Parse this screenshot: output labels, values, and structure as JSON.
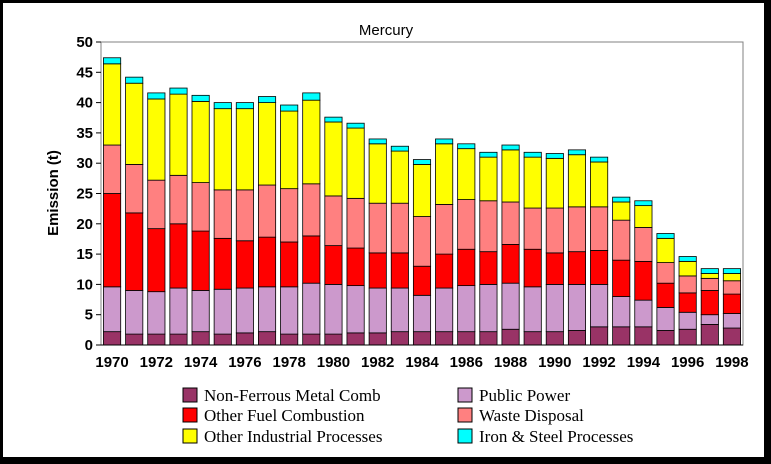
{
  "chart_data": {
    "type": "bar",
    "stacked": true,
    "title": "Mercury",
    "xlabel": "",
    "ylabel": "Emission (t)",
    "ylim": [
      0,
      50
    ],
    "yticks": [
      0,
      5,
      10,
      15,
      20,
      25,
      30,
      35,
      40,
      45,
      50
    ],
    "categories": [
      "1970",
      "1971",
      "1972",
      "1973",
      "1974",
      "1975",
      "1976",
      "1977",
      "1978",
      "1979",
      "1980",
      "1981",
      "1982",
      "1983",
      "1984",
      "1985",
      "1986",
      "1987",
      "1988",
      "1989",
      "1990",
      "1991",
      "1992",
      "1993",
      "1994",
      "1995",
      "1996",
      "1997",
      "1998"
    ],
    "xtick_labels": [
      "1970",
      "",
      "1972",
      "",
      "1974",
      "",
      "1976",
      "",
      "1978",
      "",
      "1980",
      "",
      "1982",
      "",
      "1984",
      "",
      "1986",
      "",
      "1988",
      "",
      "1990",
      "",
      "1992",
      "",
      "1994",
      "",
      "1996",
      "",
      "1998"
    ],
    "grid": false,
    "legend_position": "bottom",
    "colors": {
      "plot_border": "#808080",
      "bar_edge": "#000000"
    },
    "series": [
      {
        "name": "Non-Ferrous Metal Comb",
        "color": "#993366",
        "values": [
          2.2,
          1.8,
          1.8,
          1.8,
          2.2,
          1.8,
          2.0,
          2.2,
          1.8,
          1.8,
          1.8,
          2.0,
          2.0,
          2.2,
          2.2,
          2.2,
          2.2,
          2.2,
          2.6,
          2.2,
          2.2,
          2.4,
          3.0,
          3.0,
          3.0,
          2.4,
          2.6,
          3.4,
          2.8
        ]
      },
      {
        "name": "Public Power",
        "color": "#cc99cc",
        "values": [
          7.4,
          7.2,
          7.0,
          7.6,
          6.8,
          7.4,
          7.4,
          7.4,
          7.8,
          8.4,
          8.2,
          7.8,
          7.4,
          7.2,
          6.0,
          7.2,
          7.6,
          7.8,
          7.6,
          7.4,
          7.8,
          7.6,
          7.0,
          5.0,
          4.4,
          3.8,
          2.8,
          1.6,
          2.4
        ]
      },
      {
        "name": "Other Fuel Combustion",
        "color": "#ff0000",
        "values": [
          15.4,
          12.8,
          10.4,
          10.6,
          9.8,
          8.4,
          7.8,
          8.2,
          7.4,
          7.8,
          6.4,
          6.2,
          5.8,
          5.8,
          4.8,
          5.6,
          6.0,
          5.4,
          6.4,
          6.2,
          5.2,
          5.4,
          5.6,
          6.0,
          6.4,
          4.0,
          3.2,
          4.0,
          3.2
        ]
      },
      {
        "name": "Waste Disposal",
        "color": "#ff8080",
        "values": [
          8.0,
          8.0,
          8.0,
          8.0,
          8.0,
          8.0,
          8.4,
          8.6,
          8.8,
          8.6,
          8.2,
          8.2,
          8.2,
          8.2,
          8.2,
          8.2,
          8.2,
          8.4,
          7.0,
          6.8,
          7.4,
          7.4,
          7.2,
          6.6,
          5.6,
          3.4,
          2.8,
          2.0,
          2.2
        ]
      },
      {
        "name": "Other Industrial Processes",
        "color": "#ffff00",
        "values": [
          13.4,
          13.4,
          13.4,
          13.4,
          13.4,
          13.4,
          13.4,
          13.6,
          12.8,
          13.8,
          12.2,
          11.6,
          9.8,
          8.6,
          8.6,
          10.0,
          8.4,
          7.2,
          8.6,
          8.4,
          8.2,
          8.6,
          7.4,
          3.0,
          3.6,
          4.0,
          2.4,
          0.8,
          1.2
        ]
      },
      {
        "name": "Iron & Steel Processes",
        "color": "#00ffff",
        "values": [
          1.0,
          1.0,
          1.0,
          1.0,
          1.0,
          1.0,
          1.0,
          1.0,
          1.0,
          1.2,
          0.8,
          0.8,
          0.8,
          0.8,
          0.8,
          0.8,
          0.8,
          0.8,
          0.8,
          0.8,
          0.8,
          0.8,
          0.8,
          0.8,
          0.8,
          0.8,
          0.8,
          0.8,
          0.8
        ]
      }
    ]
  }
}
